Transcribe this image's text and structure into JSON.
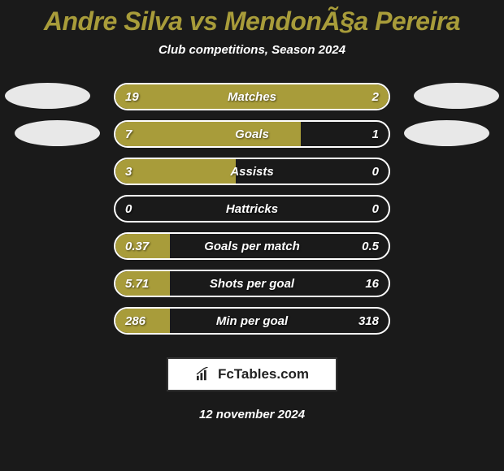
{
  "title": "Andre Silva vs MendonÃ§a Pereira",
  "subtitle": "Club competitions, Season 2024",
  "date": "12 november 2024",
  "badge_text": "FcTables.com",
  "colors": {
    "background": "#1a1a1a",
    "accent": "#a89c3a",
    "bar_fill": "#a89c3a",
    "bar_empty_fill": "transparent",
    "row_border": "#ffffff",
    "text": "#ffffff",
    "oval": "#e8e8e8"
  },
  "stats": [
    {
      "label": "Matches",
      "left_val": "19",
      "right_val": "2",
      "left_pct": 78,
      "right_pct": 22,
      "left_color": "#a89c3a",
      "right_color": "#a89c3a"
    },
    {
      "label": "Goals",
      "left_val": "7",
      "right_val": "1",
      "left_pct": 68,
      "right_pct": 0,
      "left_color": "#a89c3a",
      "right_color": "#a89c3a"
    },
    {
      "label": "Assists",
      "left_val": "3",
      "right_val": "0",
      "left_pct": 44,
      "right_pct": 0,
      "left_color": "#a89c3a",
      "right_color": "#a89c3a"
    },
    {
      "label": "Hattricks",
      "left_val": "0",
      "right_val": "0",
      "left_pct": 0,
      "right_pct": 0,
      "left_color": "#a89c3a",
      "right_color": "#a89c3a"
    },
    {
      "label": "Goals per match",
      "left_val": "0.37",
      "right_val": "0.5",
      "left_pct": 20,
      "right_pct": 0,
      "left_color": "#a89c3a",
      "right_color": "#a89c3a"
    },
    {
      "label": "Shots per goal",
      "left_val": "5.71",
      "right_val": "16",
      "left_pct": 20,
      "right_pct": 0,
      "left_color": "#a89c3a",
      "right_color": "#a89c3a"
    },
    {
      "label": "Min per goal",
      "left_val": "286",
      "right_val": "318",
      "left_pct": 20,
      "right_pct": 0,
      "left_color": "#a89c3a",
      "right_color": "#a89c3a"
    }
  ]
}
